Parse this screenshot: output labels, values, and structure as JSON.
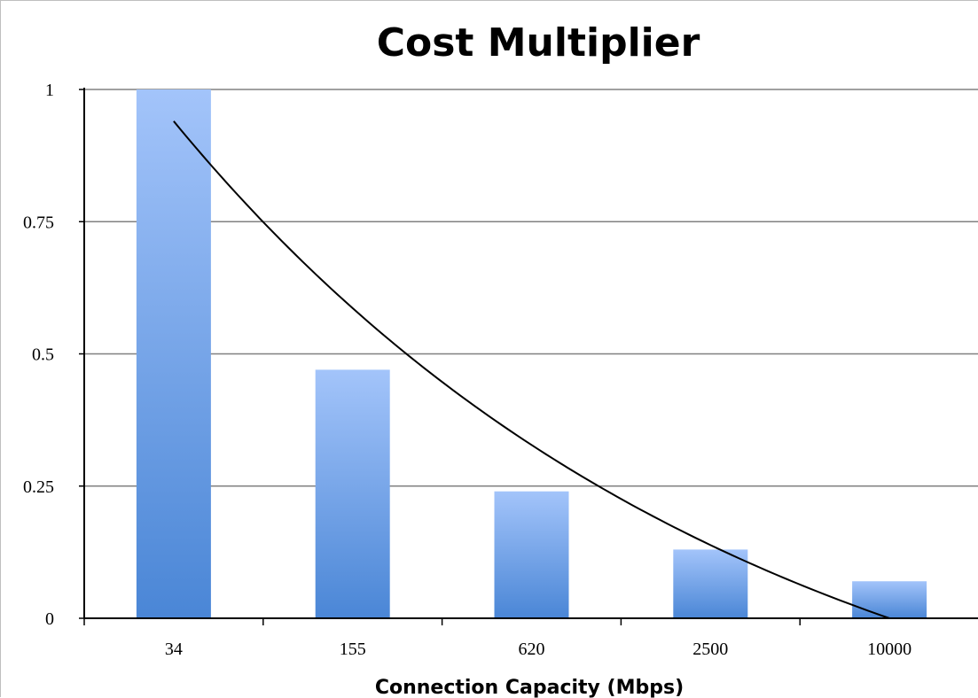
{
  "chart_data": {
    "type": "bar",
    "title": "Cost Multiplier",
    "xlabel": "Connection Capacity (Mbps)",
    "ylabel": "",
    "categories": [
      "34",
      "155",
      "620",
      "2500",
      "10000"
    ],
    "values": [
      1.0,
      0.47,
      0.24,
      0.13,
      0.07
    ],
    "ylim": [
      0,
      1
    ],
    "yticks": [
      "0",
      "0.25",
      "0.5",
      "0.75",
      "1"
    ],
    "ytick_values": [
      0,
      0.25,
      0.5,
      0.75,
      1
    ],
    "trendline": {
      "type": "exponential",
      "x_range": [
        0,
        4
      ],
      "y_start": 0.94,
      "y_end": 0.0
    },
    "grid": true,
    "legend": "none",
    "colors": {
      "bar_top": "#a3c4fa",
      "bar_bottom": "#4a86d6",
      "grid": "#808080",
      "trendline": "#000000"
    }
  }
}
